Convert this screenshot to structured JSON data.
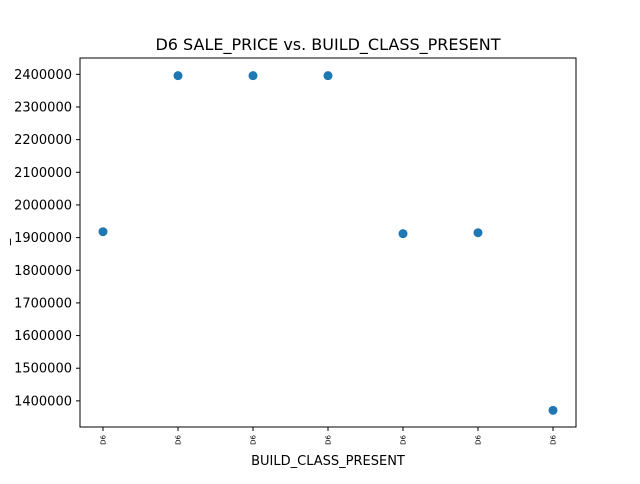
{
  "chart_data": {
    "type": "scatter",
    "title": "D6 SALE_PRICE vs. BUILD_CLASS_PRESENT",
    "xlabel": "BUILD_CLASS_PRESENT",
    "ylabel": "_",
    "categories": [
      "D6",
      "D6",
      "D6",
      "D6",
      "D6",
      "D6",
      "D6"
    ],
    "values": [
      1918000,
      2396000,
      2396000,
      2396000,
      1912000,
      1915000,
      1371000
    ],
    "yticks": [
      1400000,
      1500000,
      1600000,
      1700000,
      1800000,
      1900000,
      2000000,
      2100000,
      2200000,
      2300000,
      2400000
    ],
    "ylim": [
      1320000,
      2450000
    ],
    "grid": false,
    "legend": "none",
    "marker_color": "#1f77b4"
  }
}
